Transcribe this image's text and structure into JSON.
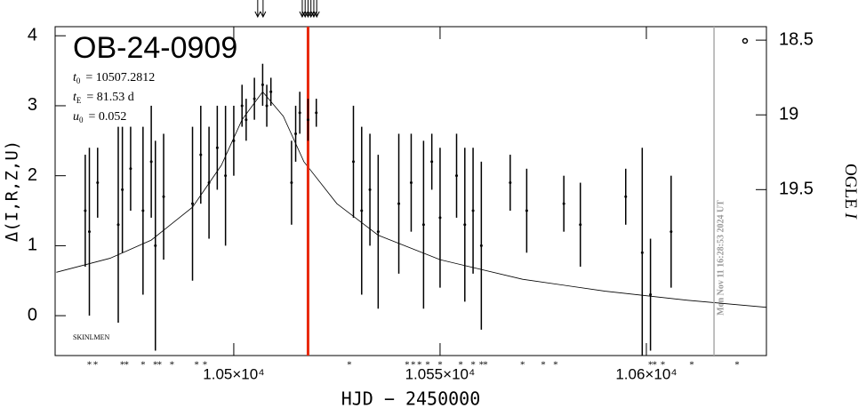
{
  "chart_data": {
    "type": "scatter",
    "title": "OB-24-0909",
    "parameters": [
      {
        "symbol": "t",
        "sub": "0",
        "text": "= 10507.2812"
      },
      {
        "symbol": "t",
        "sub": "E",
        "text": "= 81.53  d"
      },
      {
        "symbol": "u",
        "sub": "0",
        "text": "= 0.052"
      }
    ],
    "corner_label": "SKINLMEN",
    "timestamp": "Mon Nov 11 16:28:53 2024 UT",
    "xlabel": "HJD − 2450000",
    "ylabel": "Δ(I,R,Z,U)",
    "y2label": "OGLE",
    "y2label_italic": "I",
    "xlim": [
      10456.7,
      10629.1
    ],
    "ylim": [
      -0.57,
      4.13
    ],
    "y2lim": [
      20.61,
      18.41
    ],
    "xticks": [
      {
        "value": 10500,
        "label": "1.05×10⁴"
      },
      {
        "value": 10550,
        "label": "1.055×10⁴"
      },
      {
        "value": 10600,
        "label": "1.06×10⁴"
      }
    ],
    "yticks": [
      0,
      1,
      2,
      3,
      4
    ],
    "y2ticks": [
      18.5,
      19,
      19.5
    ],
    "color": "#000000",
    "x": [
      10464,
      10465,
      10467,
      10472,
      10473,
      10475,
      10478,
      10480,
      10481,
      10483,
      10490,
      10492,
      10494,
      10496,
      10498,
      10500,
      10502,
      10503,
      10505,
      10507,
      10508,
      10509,
      10514,
      10515,
      10516,
      10518,
      10520,
      10529,
      10531,
      10533,
      10535,
      10540,
      10543,
      10546,
      10548,
      10550,
      10554,
      10556,
      10558,
      10560,
      10567,
      10571,
      10580,
      10584,
      10595,
      10599,
      10601,
      10606
    ],
    "values": [
      1.5,
      1.2,
      1.9,
      1.3,
      1.8,
      2.1,
      1.5,
      2.2,
      1.0,
      1.7,
      1.6,
      2.3,
      1.9,
      2.4,
      2.0,
      2.5,
      3.0,
      2.8,
      3.1,
      3.3,
      3.0,
      3.2,
      1.9,
      2.6,
      2.9,
      2.8,
      2.9,
      2.2,
      1.5,
      1.8,
      1.2,
      1.6,
      1.9,
      1.3,
      2.2,
      1.4,
      2.0,
      1.3,
      1.5,
      1.0,
      1.9,
      1.5,
      1.6,
      1.3,
      1.7,
      0.9,
      0.3,
      1.2
    ],
    "errors": [
      0.8,
      1.2,
      0.5,
      1.4,
      0.9,
      0.6,
      1.2,
      0.8,
      1.5,
      0.9,
      1.1,
      0.7,
      0.8,
      0.6,
      1.0,
      0.5,
      0.3,
      0.3,
      0.3,
      0.3,
      0.3,
      0.2,
      0.6,
      0.4,
      0.3,
      0.3,
      0.2,
      0.8,
      1.2,
      0.8,
      1.1,
      1.0,
      0.7,
      1.2,
      0.4,
      1.0,
      0.6,
      1.1,
      0.9,
      1.2,
      0.4,
      0.6,
      0.4,
      0.6,
      0.4,
      1.5,
      0.8,
      0.8
    ],
    "model": {
      "color": "#000000",
      "x": [
        10457,
        10470,
        10480,
        10490,
        10497,
        10502,
        10507,
        10512,
        10517,
        10525,
        10535,
        10550,
        10570,
        10590,
        10610,
        10629
      ],
      "values": [
        0.62,
        0.82,
        1.08,
        1.55,
        2.15,
        2.8,
        3.2,
        2.85,
        2.2,
        1.6,
        1.15,
        0.8,
        0.52,
        0.35,
        0.22,
        0.12
      ]
    },
    "vlines": [
      {
        "x": 10518,
        "color": "#e8280c"
      },
      {
        "x": 10616.4,
        "color": "#aaaaaa"
      }
    ],
    "arrows": [
      10505.8,
      10507.1,
      10516.6,
      10517.3,
      10518,
      10518.7,
      10519.4,
      10520.1
    ],
    "observation_times": [
      10465,
      10466.5,
      10473,
      10474,
      10478,
      10481,
      10482,
      10485,
      10491,
      10493,
      10528,
      10542,
      10543.5,
      10545,
      10547,
      10550,
      10555,
      10558,
      10560,
      10561,
      10570,
      10575,
      10578,
      10601,
      10602,
      10604,
      10611,
      10622
    ]
  }
}
